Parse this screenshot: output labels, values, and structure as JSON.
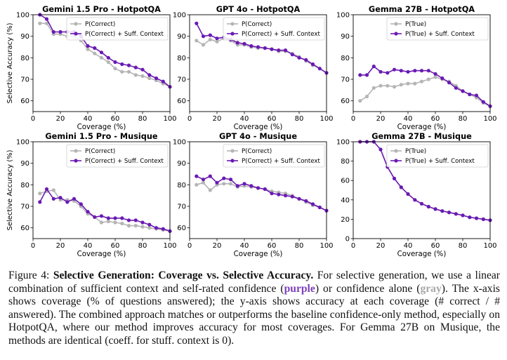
{
  "colors": {
    "combined": "#6a1ab3",
    "baseline": "#b5b5b5",
    "axis": "#000000"
  },
  "caption": {
    "prefix": "Figure 4: ",
    "bold_title": "Selective Generation: Coverage vs. Selective Accuracy.",
    "text_1": " For selective generation, we use a linear combination of sufficient context and self-rated confidence (",
    "purple_word": "purple",
    "text_2": ") or confidence alone (",
    "gray_word": "gray",
    "text_3": "). The x-axis shows coverage (% of questions answered); the y-axis shows accuracy at each coverage (# correct / # answered). The combined approach matches or outperforms the baseline confidence-only method, especially on HotpotQA, where our method improves accuracy for most coverages. For Gemma 27B on Musique, the methods are identical (coeff. for stuff. context is 0)."
  },
  "chart_data": [
    {
      "type": "line",
      "title": "Gemini 1.5 Pro - HotpotQA",
      "xlabel": "Coverage (%)",
      "ylabel": "Selective Accuracy (%)",
      "xlim": [
        0,
        100
      ],
      "ylim": [
        55,
        100
      ],
      "xticks": [
        0,
        20,
        40,
        60,
        80,
        100
      ],
      "yticks": [
        60,
        70,
        80,
        90,
        100
      ],
      "legend_position": "top-right",
      "series": [
        {
          "name": "P(Correct)",
          "role": "baseline",
          "x": [
            5,
            10,
            15,
            20,
            25,
            30,
            35,
            40,
            45,
            50,
            55,
            60,
            65,
            70,
            75,
            80,
            85,
            90,
            95,
            100
          ],
          "y": [
            96,
            96,
            91,
            91,
            90,
            90,
            88,
            84,
            82,
            80,
            78,
            75,
            73.5,
            73.5,
            72,
            71.5,
            70.5,
            69.5,
            68,
            66.5
          ]
        },
        {
          "name": "P(Correct) + Suff. Context",
          "role": "combined",
          "x": [
            5,
            10,
            15,
            20,
            25,
            30,
            35,
            40,
            45,
            50,
            55,
            60,
            65,
            70,
            75,
            80,
            85,
            90,
            95,
            100
          ],
          "y": [
            100,
            98,
            92,
            92,
            92,
            92,
            90,
            85.5,
            84.5,
            82.5,
            80,
            78,
            77,
            76.5,
            75.5,
            74.5,
            72,
            70.5,
            69,
            66.5
          ]
        }
      ]
    },
    {
      "type": "line",
      "title": "GPT 4o - HotpotQA",
      "xlabel": "Coverage (%)",
      "ylabel": "",
      "xlim": [
        0,
        100
      ],
      "ylim": [
        55,
        100
      ],
      "xticks": [
        0,
        20,
        40,
        60,
        80,
        100
      ],
      "yticks": [
        60,
        70,
        80,
        90,
        100
      ],
      "legend_position": "top-right",
      "series": [
        {
          "name": "P(Correct)",
          "role": "baseline",
          "x": [
            5,
            10,
            15,
            20,
            25,
            30,
            35,
            40,
            45,
            50,
            55,
            60,
            65,
            70,
            75,
            80,
            85,
            90,
            95,
            100
          ],
          "y": [
            88,
            86,
            88.5,
            87.5,
            89,
            88,
            86,
            86,
            85,
            84.5,
            84.5,
            84,
            83,
            83,
            82,
            80.5,
            78.5,
            76.5,
            75,
            73
          ]
        },
        {
          "name": "P(Correct) + Suff. Context",
          "role": "combined",
          "x": [
            5,
            10,
            15,
            20,
            25,
            30,
            35,
            40,
            45,
            50,
            55,
            60,
            65,
            70,
            75,
            80,
            85,
            90,
            95,
            100
          ],
          "y": [
            96,
            90,
            90.5,
            89,
            89.5,
            88.5,
            87,
            86.5,
            85.5,
            85,
            84.5,
            84,
            83.5,
            83.5,
            81.5,
            80,
            79,
            77,
            75,
            73
          ]
        }
      ]
    },
    {
      "type": "line",
      "title": "Gemma 27B - HotpotQA",
      "xlabel": "Coverage (%)",
      "ylabel": "",
      "xlim": [
        0,
        100
      ],
      "ylim": [
        55,
        100
      ],
      "xticks": [
        0,
        20,
        40,
        60,
        80,
        100
      ],
      "yticks": [
        60,
        70,
        80,
        90,
        100
      ],
      "legend_position": "top-right",
      "series": [
        {
          "name": "P(True)",
          "role": "baseline",
          "x": [
            5,
            10,
            15,
            20,
            25,
            30,
            35,
            40,
            45,
            50,
            55,
            60,
            65,
            70,
            75,
            80,
            85,
            90,
            95,
            100
          ],
          "y": [
            60,
            62,
            66,
            67,
            67,
            66.5,
            67.5,
            68,
            68,
            69,
            70,
            71,
            70,
            69,
            67,
            64.5,
            63,
            61.5,
            59,
            57.5
          ]
        },
        {
          "name": "P(True) + Suff. Context",
          "role": "combined",
          "x": [
            5,
            10,
            15,
            20,
            25,
            30,
            35,
            40,
            45,
            50,
            55,
            60,
            65,
            70,
            75,
            80,
            85,
            90,
            95,
            100
          ],
          "y": [
            72,
            72,
            76,
            73.5,
            73,
            74.5,
            74,
            73.5,
            74,
            74,
            74,
            72.5,
            70.5,
            68.5,
            66,
            64.5,
            63,
            62.5,
            59.5,
            57.5
          ]
        }
      ]
    },
    {
      "type": "line",
      "title": "Gemini 1.5 Pro - Musique",
      "xlabel": "Coverage (%)",
      "ylabel": "Selective Accuracy (%)",
      "xlim": [
        0,
        100
      ],
      "ylim": [
        55,
        100
      ],
      "xticks": [
        0,
        20,
        40,
        60,
        80,
        100
      ],
      "yticks": [
        60,
        70,
        80,
        90,
        100
      ],
      "legend_position": "top-right",
      "series": [
        {
          "name": "P(Correct)",
          "role": "baseline",
          "x": [
            5,
            10,
            15,
            20,
            25,
            30,
            35,
            40,
            45,
            50,
            55,
            60,
            65,
            70,
            75,
            80,
            85,
            90,
            95,
            100
          ],
          "y": [
            76,
            77,
            77.5,
            73,
            73,
            72.5,
            70,
            66.5,
            65,
            62.5,
            63,
            62.5,
            62,
            61,
            61,
            60.5,
            60,
            59.5,
            59,
            58.5
          ]
        },
        {
          "name": "P(Correct) + Suff. Context",
          "role": "combined",
          "x": [
            5,
            10,
            15,
            20,
            25,
            30,
            35,
            40,
            45,
            50,
            55,
            60,
            65,
            70,
            75,
            80,
            85,
            90,
            95,
            100
          ],
          "y": [
            72,
            78,
            73.5,
            74,
            72,
            73.5,
            71,
            67.5,
            65,
            65.5,
            64.5,
            64.5,
            64.5,
            63.5,
            63.5,
            62.5,
            61.5,
            60,
            59.5,
            58.5
          ]
        }
      ]
    },
    {
      "type": "line",
      "title": "GPT 4o - Musique",
      "xlabel": "Coverage (%)",
      "ylabel": "",
      "xlim": [
        0,
        100
      ],
      "ylim": [
        55,
        100
      ],
      "xticks": [
        0,
        20,
        40,
        60,
        80,
        100
      ],
      "yticks": [
        60,
        70,
        80,
        90,
        100
      ],
      "legend_position": "top-right",
      "series": [
        {
          "name": "P(Correct)",
          "role": "baseline",
          "x": [
            5,
            10,
            15,
            20,
            25,
            30,
            35,
            40,
            45,
            50,
            55,
            60,
            65,
            70,
            75,
            80,
            85,
            90,
            95,
            100
          ],
          "y": [
            80,
            81,
            77.5,
            80,
            80.5,
            80.5,
            79,
            79.5,
            79,
            78.5,
            78,
            77,
            76.5,
            76,
            75,
            73.5,
            72,
            70.5,
            69.5,
            68
          ]
        },
        {
          "name": "P(Correct) + Suff. Context",
          "role": "combined",
          "x": [
            5,
            10,
            15,
            20,
            25,
            30,
            35,
            40,
            45,
            50,
            55,
            60,
            65,
            70,
            75,
            80,
            85,
            90,
            95,
            100
          ],
          "y": [
            84,
            82.5,
            84,
            81,
            83,
            82.5,
            79.5,
            80.5,
            79.5,
            78.5,
            78,
            76,
            75.5,
            75,
            74.5,
            73.5,
            72.5,
            71,
            69.5,
            68
          ]
        }
      ]
    },
    {
      "type": "line",
      "title": "Gemma 27B - Musique",
      "xlabel": "Coverage (%)",
      "ylabel": "",
      "xlim": [
        0,
        100
      ],
      "ylim": [
        0,
        100
      ],
      "xticks": [
        0,
        20,
        40,
        60,
        80,
        100
      ],
      "yticks": [
        0,
        20,
        40,
        60,
        80,
        100
      ],
      "legend_position": "top-right",
      "series": [
        {
          "name": "P(True)",
          "role": "baseline",
          "x": [
            5,
            10,
            15,
            20,
            25,
            30,
            35,
            40,
            45,
            50,
            55,
            60,
            65,
            70,
            75,
            80,
            85,
            90,
            95,
            100
          ],
          "y": [
            100,
            100,
            100,
            92,
            74,
            62,
            53,
            46,
            40,
            36,
            33,
            30.5,
            28.5,
            27,
            25.5,
            24,
            22,
            21,
            20,
            19
          ]
        },
        {
          "name": "P(True) + Suff. Context",
          "role": "combined",
          "x": [
            5,
            10,
            15,
            20,
            25,
            30,
            35,
            40,
            45,
            50,
            55,
            60,
            65,
            70,
            75,
            80,
            85,
            90,
            95,
            100
          ],
          "y": [
            100,
            100,
            100,
            92,
            74,
            62,
            53,
            46,
            40,
            36,
            33,
            30.5,
            28.5,
            27,
            25.5,
            24,
            22,
            21,
            20,
            19
          ]
        }
      ]
    }
  ]
}
